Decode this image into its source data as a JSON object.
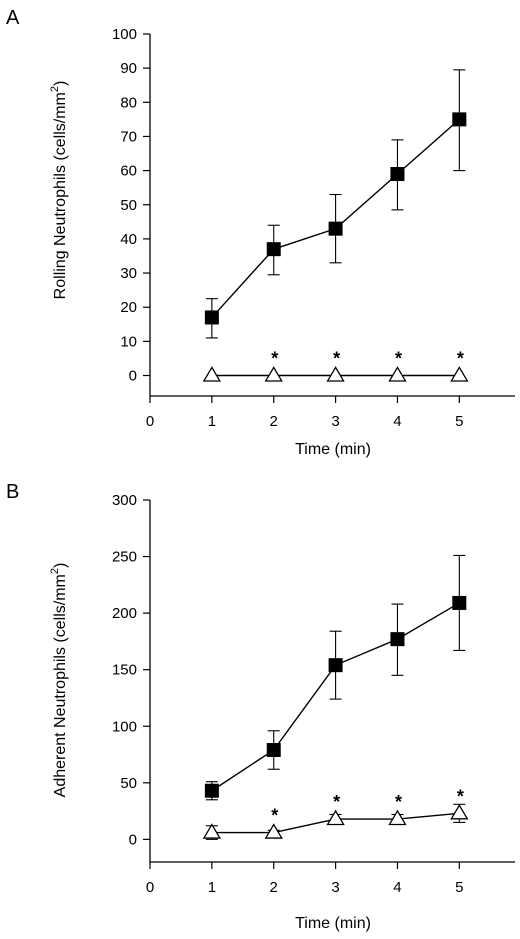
{
  "chart_data": [
    {
      "type": "line",
      "panel_label": "A",
      "ylabel_main": "Rolling Neutrophils (cells/mm",
      "ylabel_sup": "2",
      "ylabel_end": ")",
      "xlabel": "Time (min)",
      "xlim": [
        0,
        5.9
      ],
      "ylim": [
        -6,
        100
      ],
      "xticks": [
        0,
        1,
        2,
        3,
        4,
        5
      ],
      "yticks": [
        0,
        10,
        20,
        30,
        40,
        50,
        60,
        70,
        80,
        90,
        100
      ],
      "series": [
        {
          "marker": "filled-square",
          "x": [
            1,
            2,
            3,
            4,
            5
          ],
          "y": [
            17,
            37,
            43,
            59,
            75
          ],
          "err_upper": [
            22.5,
            44,
            53,
            69,
            89.5
          ],
          "err_lower": [
            11,
            29.5,
            33,
            48.5,
            60
          ]
        },
        {
          "marker": "open-triangle",
          "x": [
            1,
            2,
            3,
            4,
            5
          ],
          "y": [
            0,
            0,
            0,
            0,
            0
          ],
          "significance": [
            "",
            "*",
            "*",
            "*",
            "*"
          ]
        }
      ]
    },
    {
      "type": "line",
      "panel_label": "B",
      "ylabel_main": "Adherent Neutrophils (cells/mm",
      "ylabel_sup": "2",
      "ylabel_end": ")",
      "xlabel": "Time (min)",
      "xlim": [
        0,
        5.9
      ],
      "ylim": [
        -20,
        300
      ],
      "xticks": [
        0,
        1,
        2,
        3,
        4,
        5
      ],
      "yticks": [
        0,
        50,
        100,
        150,
        200,
        250,
        300
      ],
      "series": [
        {
          "marker": "filled-square",
          "x": [
            1,
            2,
            3,
            4,
            5
          ],
          "y": [
            43,
            79,
            154,
            177,
            209
          ],
          "err_upper": [
            51,
            96,
            184,
            208,
            251
          ],
          "err_lower": [
            35,
            62,
            124,
            145,
            167
          ]
        },
        {
          "marker": "open-triangle",
          "x": [
            1,
            2,
            3,
            4,
            5
          ],
          "y": [
            6,
            6,
            18,
            18,
            23
          ],
          "err_upper": [
            12,
            8,
            22,
            22,
            31
          ],
          "err_lower": [
            0,
            4,
            14,
            14,
            15
          ],
          "significance": [
            "",
            "*",
            "*",
            "*",
            "*"
          ]
        }
      ]
    }
  ]
}
